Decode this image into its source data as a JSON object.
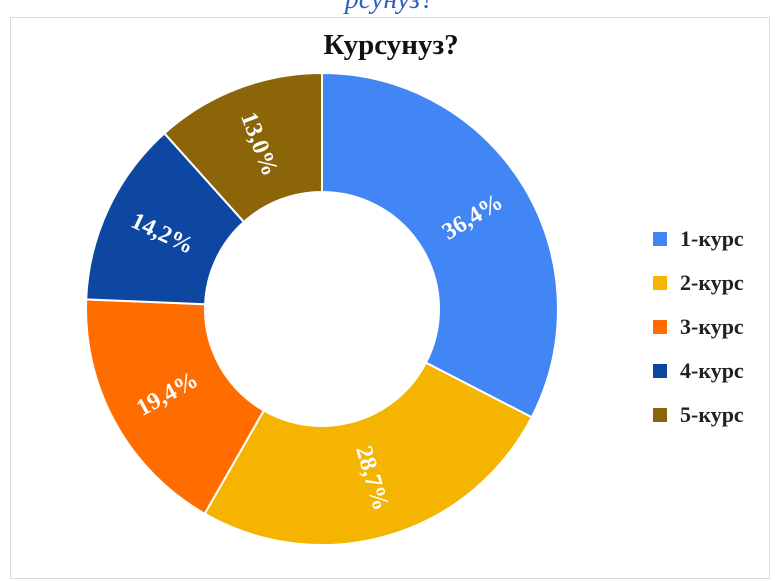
{
  "header": {
    "caption": "рсунуз?"
  },
  "chart_data": {
    "type": "pie",
    "title": "Курсунуз?",
    "categories": [
      "1-курс",
      "2-курс",
      "3-курс",
      "4-курс",
      "5-курс"
    ],
    "values": [
      36.4,
      28.7,
      19.4,
      14.2,
      13.0
    ],
    "labels": [
      "36,4%",
      "28,7%",
      "19,4%",
      "14,2%",
      "13,0%"
    ],
    "colors": [
      "#4285F4",
      "#F4B400",
      "#FF6D01",
      "#0D47A1",
      "#8B6508"
    ],
    "donut": true,
    "legend_position": "right"
  }
}
